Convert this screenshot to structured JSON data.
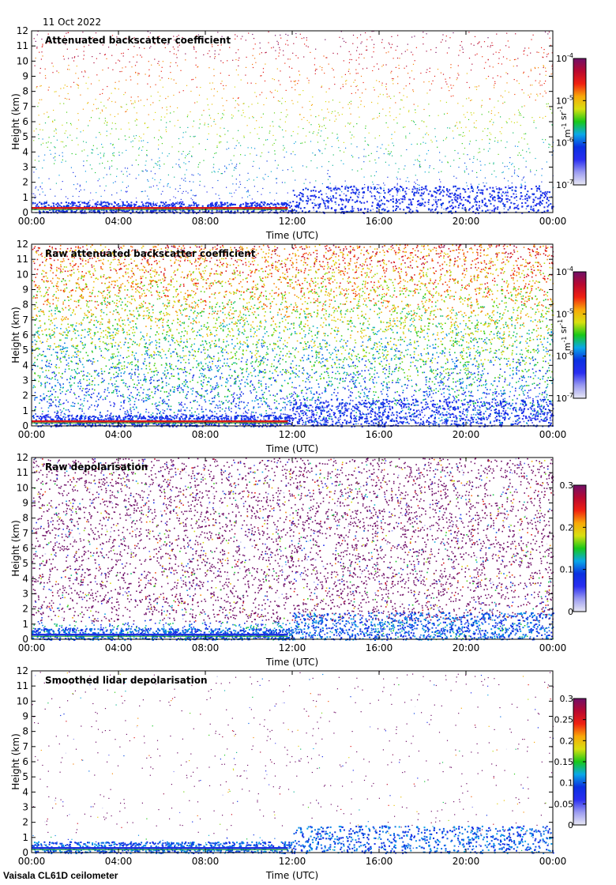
{
  "date": "11 Oct 2022",
  "footer": "Vaisala CL61D ceilometer",
  "colors": {
    "gradient": [
      "#e8e8f4",
      "#9c9cf0",
      "#2a2ef0",
      "#0a30e0",
      "#0aa8e8",
      "#18c818",
      "#d8e010",
      "#f8a808",
      "#f02010",
      "#b80830",
      "#701068"
    ],
    "background": "#e0e0e0"
  },
  "chart_data": [
    {
      "type": "heatmap",
      "title": "Attenuated backscatter coefficient",
      "xlabel": "Time (UTC)",
      "ylabel": "Height (km)",
      "x_ticks": [
        "00:00",
        "04:00",
        "08:00",
        "12:00",
        "16:00",
        "20:00",
        "00:00"
      ],
      "y_ticks": [
        "0",
        "1",
        "2",
        "3",
        "4",
        "5",
        "6",
        "7",
        "8",
        "9",
        "10",
        "11",
        "12"
      ],
      "ylim": [
        0,
        12
      ],
      "xlim_hours": [
        0,
        24
      ],
      "colorbar": {
        "scale": "log",
        "range": [
          1e-07,
          0.0001
        ],
        "tick_labels": [
          {
            "base": "10",
            "exp": "-4",
            "value": -4
          },
          {
            "base": "10",
            "exp": "-5",
            "value": -5
          },
          {
            "base": "10",
            "exp": "-6",
            "value": -6
          },
          {
            "base": "10",
            "exp": "-7",
            "value": -7
          }
        ],
        "units": [
          {
            "base": "m",
            "exp": "-1"
          },
          {
            "base": " sr",
            "exp": "-1"
          }
        ]
      },
      "features": {
        "cloud_layer_km": 0.3,
        "boundary_layer_top_km": 1.5,
        "noise_density": 0.25
      }
    },
    {
      "type": "heatmap",
      "title": "Raw attenuated backscatter coefficient",
      "xlabel": "Time (UTC)",
      "ylabel": "Height (km)",
      "x_ticks": [
        "00:00",
        "04:00",
        "08:00",
        "12:00",
        "16:00",
        "20:00",
        "00:00"
      ],
      "y_ticks": [
        "0",
        "1",
        "2",
        "3",
        "4",
        "5",
        "6",
        "7",
        "8",
        "9",
        "10",
        "11",
        "12"
      ],
      "ylim": [
        0,
        12
      ],
      "xlim_hours": [
        0,
        24
      ],
      "colorbar": {
        "scale": "log",
        "range": [
          1e-07,
          0.0001
        ],
        "tick_labels": [
          {
            "base": "10",
            "exp": "-4",
            "value": -4
          },
          {
            "base": "10",
            "exp": "-5",
            "value": -5
          },
          {
            "base": "10",
            "exp": "-6",
            "value": -6
          },
          {
            "base": "10",
            "exp": "-7",
            "value": -7
          }
        ],
        "units": [
          {
            "base": "m",
            "exp": "-1"
          },
          {
            "base": " sr",
            "exp": "-1"
          }
        ]
      },
      "features": {
        "cloud_layer_km": 0.3,
        "boundary_layer_top_km": 1.5,
        "noise_density": 0.9
      }
    },
    {
      "type": "heatmap",
      "title": "Raw depolarisation",
      "xlabel": "Time (UTC)",
      "ylabel": "Height (km)",
      "x_ticks": [
        "00:00",
        "04:00",
        "08:00",
        "12:00",
        "16:00",
        "20:00",
        "00:00"
      ],
      "y_ticks": [
        "0",
        "1",
        "2",
        "3",
        "4",
        "5",
        "6",
        "7",
        "8",
        "9",
        "10",
        "11",
        "12"
      ],
      "ylim": [
        0,
        12
      ],
      "xlim_hours": [
        0,
        24
      ],
      "colorbar": {
        "scale": "linear",
        "range": [
          0,
          0.3
        ],
        "tick_labels": [
          {
            "base": "0.3",
            "exp": "",
            "value": 0.3
          },
          {
            "base": "0.2",
            "exp": "",
            "value": 0.2
          },
          {
            "base": "0.1",
            "exp": "",
            "value": 0.1
          },
          {
            "base": "0",
            "exp": "",
            "value": 0
          }
        ],
        "units": []
      },
      "features": {
        "cloud_layer_km": 0.3,
        "boundary_layer_top_km": 1.5,
        "noise_density": 0.7
      }
    },
    {
      "type": "heatmap",
      "title": "Smoothed lidar depolarisation",
      "xlabel": "Time (UTC)",
      "ylabel": "Height (km)",
      "x_ticks": [
        "00:00",
        "04:00",
        "08:00",
        "12:00",
        "16:00",
        "20:00",
        "00:00"
      ],
      "y_ticks": [
        "0",
        "1",
        "2",
        "3",
        "4",
        "5",
        "6",
        "7",
        "8",
        "9",
        "10",
        "11",
        "12"
      ],
      "ylim": [
        0,
        12
      ],
      "xlim_hours": [
        0,
        24
      ],
      "colorbar": {
        "scale": "linear",
        "range": [
          0,
          0.3
        ],
        "tick_labels": [
          {
            "base": "0.3",
            "exp": "",
            "value": 0.3
          },
          {
            "base": "0.25",
            "exp": "",
            "value": 0.25
          },
          {
            "base": "0.2",
            "exp": "",
            "value": 0.2
          },
          {
            "base": "0.15",
            "exp": "",
            "value": 0.15
          },
          {
            "base": "0.1",
            "exp": "",
            "value": 0.1
          },
          {
            "base": "0.05",
            "exp": "",
            "value": 0.05
          },
          {
            "base": "0",
            "exp": "",
            "value": 0
          }
        ],
        "units": []
      },
      "features": {
        "cloud_layer_km": 0.3,
        "boundary_layer_top_km": 1.5,
        "noise_density": 0.08
      }
    }
  ]
}
